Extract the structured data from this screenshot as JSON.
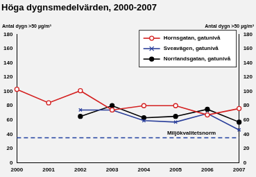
{
  "chart_data": {
    "type": "line",
    "title": "Höga dygnsmedelvärden, 2000-2007",
    "ylabel": "Antal dygn >50 µg/m³",
    "y2label": "Antal dygn >50 µg/m³",
    "categories": [
      "2000",
      "2001",
      "2002",
      "2003",
      "2004",
      "2005",
      "2006",
      "2007"
    ],
    "series": [
      {
        "name": "Hornsgatan, gatunivå",
        "color": "#d42020",
        "marker": "circle_open",
        "line_style": "solid",
        "values": [
          103,
          84,
          101,
          74,
          80,
          80,
          67,
          76
        ]
      },
      {
        "name": "Sveavägen, gatunivå",
        "color": "#2a3f9a",
        "marker": "x",
        "line_style": "solid",
        "values": [
          null,
          null,
          74,
          74,
          59,
          57,
          69,
          46
        ]
      },
      {
        "name": "Norrlandsgatan, gatunivå",
        "color": "#000000",
        "marker": "circle",
        "line_style": "solid",
        "values": [
          null,
          null,
          65,
          80,
          63,
          65,
          75,
          57
        ]
      }
    ],
    "annotations": [
      {
        "text": "Miljökvalitetsnorm",
        "y": 35,
        "color": "#1f3fa0",
        "line_style": "dashed"
      }
    ],
    "ylim": [
      0,
      180
    ],
    "yticks": [
      0,
      20,
      40,
      60,
      80,
      100,
      120,
      140,
      160,
      180
    ],
    "y2lim": [
      0,
      180
    ],
    "y2ticks": [
      0,
      20,
      40,
      60,
      80,
      100,
      120,
      140,
      160,
      180
    ],
    "grid": false,
    "legend": "top-right"
  }
}
